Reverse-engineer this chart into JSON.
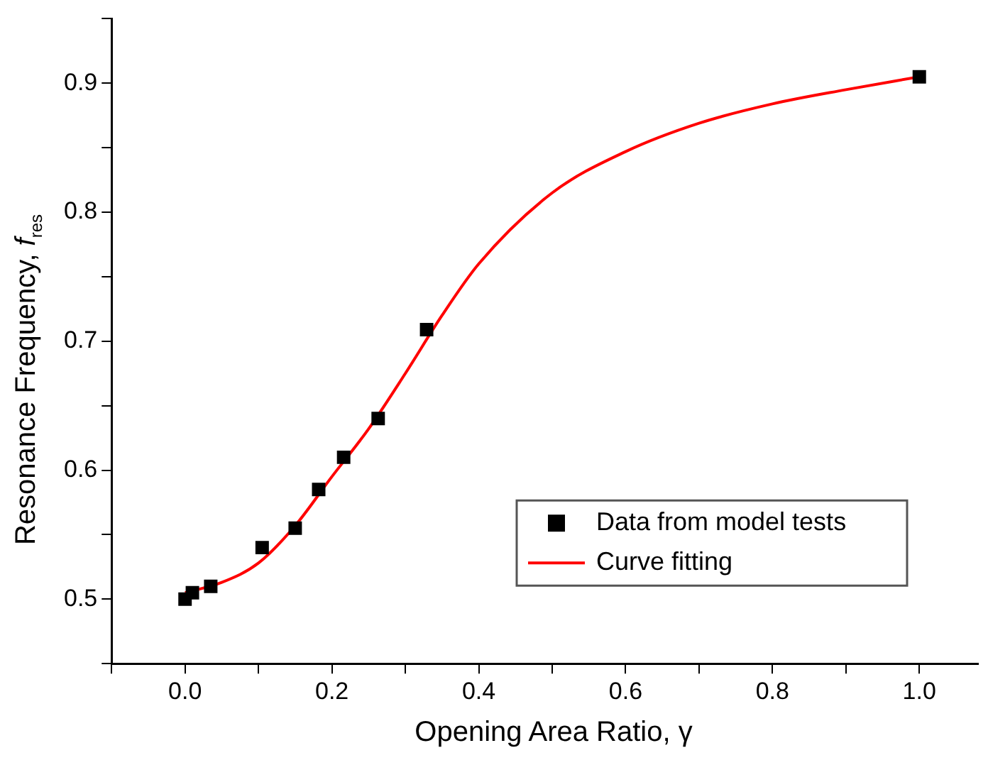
{
  "chart_data": {
    "type": "scatter",
    "xlabel": "Opening Area Ratio, γ",
    "ylabel": "Resonance Frequency, f$_{res}$",
    "xlim": [
      -0.1,
      1.08
    ],
    "ylim": [
      0.45,
      0.95
    ],
    "xticks": [
      {
        "value": -0.1,
        "label": null
      },
      {
        "value": 0,
        "label": "0.0"
      },
      {
        "value": 0.1,
        "label": null
      },
      {
        "value": 0.2,
        "label": "0.2"
      },
      {
        "value": 0.3,
        "label": null
      },
      {
        "value": 0.4,
        "label": "0.4"
      },
      {
        "value": 0.5,
        "label": null
      },
      {
        "value": 0.6,
        "label": "0.6"
      },
      {
        "value": 0.7,
        "label": null
      },
      {
        "value": 0.8,
        "label": "0.8"
      },
      {
        "value": 0.9,
        "label": null
      },
      {
        "value": 1,
        "label": "1.0"
      }
    ],
    "yticks": [
      {
        "value": 0.45,
        "label": null
      },
      0.5,
      {
        "value": 0.55,
        "label": null
      },
      0.6,
      {
        "value": 0.65,
        "label": null
      },
      0.7,
      {
        "value": 0.75,
        "label": null
      },
      0.8,
      {
        "value": 0.85,
        "label": null
      },
      0.9,
      {
        "value": 0.95,
        "label": null
      }
    ],
    "grid": false,
    "legend": "bottom right",
    "marker": "square",
    "series": [
      {
        "name": "Data from model tests",
        "color": "#000000",
        "x": [
          0,
          0.01,
          0.035,
          0.105,
          0.15,
          0.182,
          0.216,
          0.263,
          0.329,
          1.0
        ],
        "values": [
          0.5,
          0.505,
          0.51,
          0.54,
          0.555,
          0.585,
          0.61,
          0.64,
          0.709,
          0.905
        ]
      },
      {
        "name": "Curve fitting",
        "type": "line",
        "color": "#ff0000",
        "line_style": "solid",
        "marker": "none",
        "x": [
          0,
          0.05,
          0.1,
          0.15,
          0.2,
          0.25,
          0.3,
          0.35,
          0.4,
          0.5,
          0.6,
          0.7,
          0.8,
          0.9,
          1.0
        ],
        "values": [
          0.505,
          0.513,
          0.528,
          0.557,
          0.595,
          0.632,
          0.675,
          0.72,
          0.76,
          0.815,
          0.847,
          0.869,
          0.884,
          0.895,
          0.905
        ]
      }
    ]
  }
}
